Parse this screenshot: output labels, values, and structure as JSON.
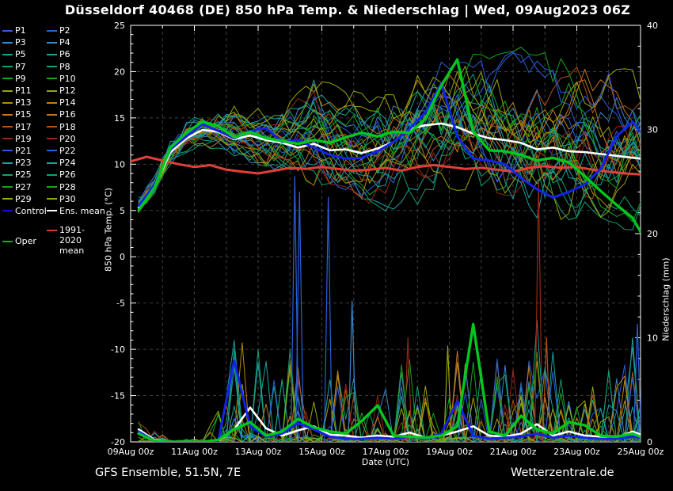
{
  "title": "Düsseldorf 40468 (DE)  850 hPa Temp. & Niederschlag | Wed, 09Aug2023 06Z",
  "footer": {
    "left": "GFS Ensemble, 51.5N, 7E",
    "right": "Wetterzentrale.de"
  },
  "legend": {
    "members": [
      {
        "label": "P1",
        "color": "#2b5fd9"
      },
      {
        "label": "P2",
        "color": "#2b5fd9"
      },
      {
        "label": "P3",
        "color": "#3a87c8"
      },
      {
        "label": "P4",
        "color": "#3a87c8"
      },
      {
        "label": "P5",
        "color": "#19a1a1"
      },
      {
        "label": "P6",
        "color": "#19a1a1"
      },
      {
        "label": "P7",
        "color": "#12a075"
      },
      {
        "label": "P8",
        "color": "#12a075"
      },
      {
        "label": "P9",
        "color": "#16a51c"
      },
      {
        "label": "P10",
        "color": "#16a51c"
      },
      {
        "label": "P11",
        "color": "#9aa50a"
      },
      {
        "label": "P12",
        "color": "#9aa50a"
      },
      {
        "label": "P13",
        "color": "#bd860e"
      },
      {
        "label": "P14",
        "color": "#bd860e"
      },
      {
        "label": "P15",
        "color": "#c4761b"
      },
      {
        "label": "P16",
        "color": "#c4761b"
      },
      {
        "label": "P17",
        "color": "#b35313"
      },
      {
        "label": "P18",
        "color": "#b35313"
      },
      {
        "label": "P19",
        "color": "#962718"
      },
      {
        "label": "P20",
        "color": "#962718"
      },
      {
        "label": "P21",
        "color": "#2b5fd9"
      },
      {
        "label": "P22",
        "color": "#2b5fd9"
      },
      {
        "label": "P23",
        "color": "#19a1a1"
      },
      {
        "label": "P24",
        "color": "#19a1a1"
      },
      {
        "label": "P25",
        "color": "#12a075"
      },
      {
        "label": "P26",
        "color": "#12a075"
      },
      {
        "label": "P27",
        "color": "#16a51c"
      },
      {
        "label": "P28",
        "color": "#16a51c"
      },
      {
        "label": "P29",
        "color": "#9aa50a"
      },
      {
        "label": "P30",
        "color": "#9aa50a"
      }
    ],
    "control_label": "Control",
    "control_color": "#1212d6",
    "mean_label": "Ens. mean",
    "mean_color": "#ffffff",
    "oper_label": "Oper",
    "oper_color": "#00bb00",
    "climate_line1": "1991-2020",
    "climate_line2": "mean",
    "climate_color": "#e03636"
  },
  "chart_data": {
    "type": "line",
    "title": "Düsseldorf 40468 (DE)  850 hPa Temp. & Niederschlag | Wed, 09Aug2023 06Z",
    "xlabel": "Date (UTC)",
    "x_unit": "days since 09Aug2023 00Z",
    "x_ticks": {
      "labels": [
        "09Aug 00z",
        "11Aug 00z",
        "13Aug 00z",
        "15Aug 00z",
        "17Aug 00z",
        "19Aug 00z",
        "21Aug 00z",
        "23Aug 00z",
        "25Aug 00z"
      ],
      "positions": [
        0,
        2,
        4,
        6,
        8,
        10,
        12,
        14,
        16
      ],
      "minor_step": 1
    },
    "y_left": {
      "label": "850 hPa Temp. (°C)",
      "min": -20,
      "max": 25,
      "tick_step": 5,
      "minor_step": 1
    },
    "y_right": {
      "label": "Niederschlag (mm)",
      "min": 0,
      "max": 40,
      "tick_step": 10,
      "minor_step": 2
    },
    "grid": {
      "on": true,
      "color": "#3f3f38"
    },
    "x": [
      0.25,
      0.75,
      1.25,
      1.75,
      2.25,
      2.75,
      3.25,
      3.75,
      4.25,
      4.75,
      5.25,
      5.75,
      6.25,
      6.75,
      7.25,
      7.75,
      8.25,
      8.75,
      9.25,
      9.75,
      10.25,
      10.75,
      11.25,
      11.75,
      12.25,
      12.75,
      13.25,
      13.75,
      14.25,
      14.75,
      15.25,
      15.75,
      16
    ],
    "temp_series": [
      {
        "name": "Ens. mean",
        "color": "#ffffff",
        "width": 2.6,
        "values": [
          5.3,
          7.6,
          11.3,
          12.8,
          13.7,
          13.5,
          12.7,
          13.1,
          12.6,
          12.3,
          11.8,
          12.2,
          11.5,
          11.6,
          11.2,
          11.7,
          12.4,
          13.8,
          14.2,
          14.4,
          14.0,
          13.3,
          12.8,
          12.6,
          12.3,
          11.6,
          11.8,
          11.4,
          11.3,
          11.1,
          10.9,
          10.7,
          10.6
        ]
      },
      {
        "name": "Control",
        "color": "#1324e8",
        "width": 3,
        "values": [
          5.5,
          7.8,
          11.6,
          13.0,
          14.3,
          13.6,
          12.8,
          13.6,
          13.9,
          12.4,
          12.6,
          11.8,
          11.0,
          10.6,
          10.7,
          11.4,
          12.4,
          13.8,
          15.6,
          18.7,
          13.0,
          10.6,
          10.4,
          10.0,
          8.5,
          7.3,
          6.4,
          7.0,
          7.8,
          9.5,
          13.0,
          14.6,
          13.5
        ]
      },
      {
        "name": "Oper",
        "color": "#00c81e",
        "width": 3.4,
        "values": [
          5.0,
          7.5,
          11.8,
          13.4,
          14.6,
          14.1,
          12.9,
          13.5,
          12.8,
          12.5,
          12.2,
          12.6,
          12.3,
          12.9,
          13.4,
          13.0,
          13.5,
          13.4,
          14.9,
          18.5,
          21.3,
          13.5,
          11.5,
          11.4,
          11.0,
          10.4,
          10.7,
          10.2,
          8.7,
          7.1,
          5.6,
          4.2,
          2.7
        ]
      }
    ],
    "climate_series": {
      "name": "1991-2020 mean",
      "color": "#e04038",
      "width": 3,
      "x": [
        0,
        0.5,
        1,
        1.5,
        2,
        2.5,
        3,
        3.5,
        4,
        4.5,
        5,
        5.5,
        6,
        6.5,
        7,
        7.5,
        8,
        8.5,
        9,
        9.5,
        10,
        10.5,
        11,
        11.5,
        12,
        12.5,
        13,
        13.5,
        14,
        14.5,
        15,
        15.5,
        16
      ],
      "values": [
        10.3,
        10.8,
        10.4,
        10.0,
        9.7,
        9.9,
        9.4,
        9.2,
        9.0,
        9.3,
        9.6,
        9.5,
        9.7,
        9.5,
        9.3,
        9.4,
        9.6,
        9.3,
        9.7,
        9.9,
        9.7,
        9.5,
        9.6,
        9.4,
        9.2,
        9.6,
        9.8,
        9.6,
        9.7,
        9.4,
        9.2,
        9.0,
        8.9
      ]
    },
    "precip_series": [
      {
        "name": "Ens. mean",
        "color": "#ffffff",
        "width": 2.6,
        "values": [
          1.2,
          0.2,
          0,
          0,
          0,
          0.1,
          1.2,
          3.3,
          1.3,
          0.6,
          1.1,
          1.5,
          0.7,
          0.6,
          0.4,
          0.6,
          0.5,
          0.9,
          0.4,
          0.6,
          1.0,
          1.5,
          0.6,
          0.5,
          0.8,
          1.7,
          0.6,
          1.0,
          0.6,
          0.5,
          0.4,
          1.0,
          0.7
        ]
      },
      {
        "name": "Control",
        "color": "#1324e8",
        "width": 3,
        "values": [
          1.0,
          0.1,
          0,
          0,
          0,
          0.1,
          7.8,
          1.5,
          0.5,
          0.8,
          1.8,
          1.2,
          0.5,
          0.3,
          0.3,
          0.4,
          0.3,
          0.5,
          0.3,
          0.8,
          3.9,
          0.6,
          0.3,
          0.4,
          0.5,
          0.8,
          0.4,
          0.6,
          0.4,
          0.3,
          0.3,
          0.5,
          0.4
        ]
      },
      {
        "name": "Oper",
        "color": "#00c81e",
        "width": 3.4,
        "values": [
          0.8,
          0.1,
          0,
          0,
          0,
          0.2,
          1.2,
          1.9,
          0.6,
          1.0,
          2.2,
          1.4,
          1.0,
          0.8,
          2.0,
          3.5,
          0.6,
          0.5,
          0.4,
          0.6,
          1.5,
          11.3,
          1.0,
          0.6,
          2.5,
          1.2,
          0.8,
          1.9,
          1.6,
          0.6,
          0.5,
          0.8,
          0.5
        ]
      }
    ],
    "ensemble": {
      "count": 30,
      "colors": [
        "#2b5fd9",
        "#2b5fd9",
        "#3a87c8",
        "#3a87c8",
        "#19a1a1",
        "#19a1a1",
        "#12a075",
        "#12a075",
        "#16a51c",
        "#16a51c",
        "#9aa50a",
        "#9aa50a",
        "#bd860e",
        "#bd860e",
        "#c4761b",
        "#c4761b",
        "#b35313",
        "#b35313",
        "#962718",
        "#962718",
        "#2b5fd9",
        "#2b5fd9",
        "#19a1a1",
        "#19a1a1",
        "#12a075",
        "#12a075",
        "#16a51c",
        "#16a51c",
        "#9aa50a",
        "#9aa50a"
      ],
      "temp_envelope_min": [
        4.5,
        6.5,
        10.0,
        11.5,
        12.0,
        11.8,
        11.0,
        10.5,
        10.0,
        9.5,
        9.0,
        8.0,
        7.5,
        7.0,
        6.0,
        5.5,
        5.0,
        5.5,
        6.0,
        6.5,
        7.0,
        6.5,
        6.0,
        5.5,
        5.0,
        4.5,
        4.0,
        4.0,
        4.0,
        4.0,
        3.5,
        3.0,
        2.5
      ],
      "temp_envelope_max": [
        6.5,
        9.0,
        12.5,
        14.5,
        15.5,
        16.0,
        16.5,
        16.0,
        16.0,
        16.5,
        18.0,
        20.5,
        19.0,
        18.0,
        17.5,
        18.0,
        19.0,
        20.0,
        21.0,
        21.5,
        22.0,
        22.5,
        22.5,
        22.0,
        22.5,
        22.0,
        21.5,
        21.0,
        21.0,
        20.5,
        20.0,
        20.0,
        19.5
      ],
      "precip_envelope_max": [
        2,
        1.5,
        0.3,
        0.3,
        0.5,
        3,
        10,
        16,
        9,
        6,
        12,
        8,
        9,
        6,
        8,
        6,
        5,
        10,
        6,
        5,
        9,
        11,
        8,
        8,
        6,
        12,
        10,
        6,
        7,
        6,
        8,
        11,
        4
      ],
      "outlier_spikes": [
        {
          "day": 5.15,
          "mm": 25.5,
          "color": "#2b5fd9"
        },
        {
          "day": 5.3,
          "mm": 24.0,
          "color": "#2b5fd9"
        },
        {
          "day": 6.2,
          "mm": 23.5,
          "color": "#2b5fd9"
        },
        {
          "day": 6.95,
          "mm": 13.5,
          "color": "#3a87c8"
        },
        {
          "day": 8.7,
          "mm": 10.0,
          "color": "#962718"
        },
        {
          "day": 9.95,
          "mm": 9.2,
          "color": "#9aa50a"
        },
        {
          "day": 12.8,
          "mm": 25.0,
          "color": "#962718"
        },
        {
          "day": 13.05,
          "mm": 10.0,
          "color": "#b35313"
        },
        {
          "day": 15.9,
          "mm": 11.3,
          "color": "#2b5fd9"
        }
      ]
    }
  }
}
